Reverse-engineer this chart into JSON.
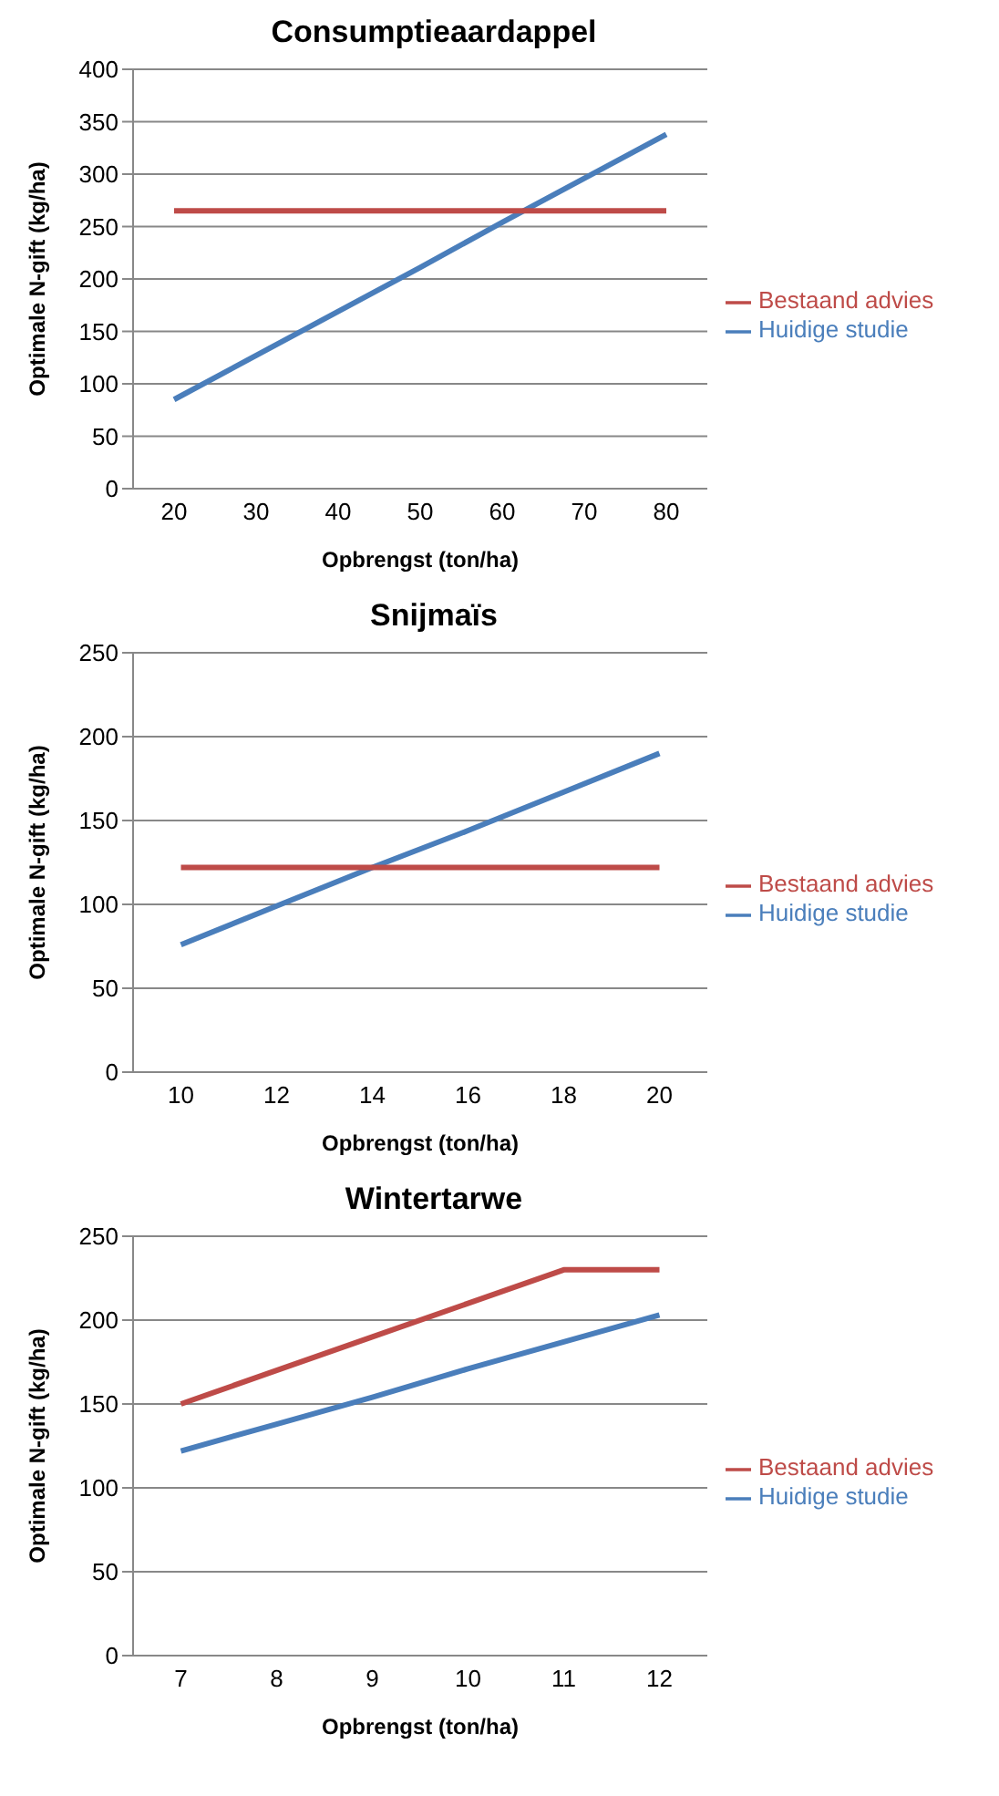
{
  "chart_data": [
    {
      "type": "line",
      "title": "Consumptieaardappel",
      "xlabel": "Opbrengst (ton/ha)",
      "ylabel": "Optimale N-gift (kg/ha)",
      "categories": [
        "20",
        "30",
        "40",
        "50",
        "60",
        "70",
        "80"
      ],
      "series": [
        {
          "name": "Huidige studie",
          "color": "#4a7ebb",
          "values": [
            85,
            127,
            169,
            211,
            254,
            296,
            338
          ]
        },
        {
          "name": "Bestaand advies",
          "color": "#be4b48",
          "values": [
            265,
            265,
            265,
            265,
            265,
            265,
            265
          ]
        }
      ],
      "ylim": [
        0,
        400
      ],
      "yticks": [
        0,
        50,
        100,
        150,
        200,
        250,
        300,
        350,
        400
      ],
      "grid": "y",
      "legend": "right",
      "marker": "none"
    },
    {
      "type": "line",
      "title": "Snijmaïs",
      "xlabel": "Opbrengst (ton/ha)",
      "ylabel": "Optimale N-gift (kg/ha)",
      "categories": [
        "10",
        "12",
        "14",
        "16",
        "18",
        "20"
      ],
      "series": [
        {
          "name": "Huidige studie",
          "color": "#4a7ebb",
          "values": [
            76,
            99,
            122,
            144,
            167,
            190
          ]
        },
        {
          "name": "Bestaand advies",
          "color": "#be4b48",
          "values": [
            122,
            122,
            122,
            122,
            122,
            122
          ]
        }
      ],
      "ylim": [
        0,
        250
      ],
      "yticks": [
        0,
        50,
        100,
        150,
        200,
        250
      ],
      "grid": "y",
      "legend": "right",
      "marker": "none"
    },
    {
      "type": "line",
      "title": "Wintertarwe",
      "xlabel": "Opbrengst (ton/ha)",
      "ylabel": "Optimale N-gift (kg/ha)",
      "categories": [
        "7",
        "8",
        "9",
        "10",
        "11",
        "12"
      ],
      "series": [
        {
          "name": "Huidige studie",
          "color": "#4a7ebb",
          "values": [
            122,
            138,
            154,
            171,
            187,
            203
          ]
        },
        {
          "name": "Bestaand advies",
          "color": "#be4b48",
          "values": [
            150,
            170,
            190,
            210,
            230,
            230
          ]
        }
      ],
      "ylim": [
        0,
        250
      ],
      "yticks": [
        0,
        50,
        100,
        150,
        200,
        250
      ],
      "grid": "y",
      "legend": "right",
      "marker": "none"
    }
  ]
}
